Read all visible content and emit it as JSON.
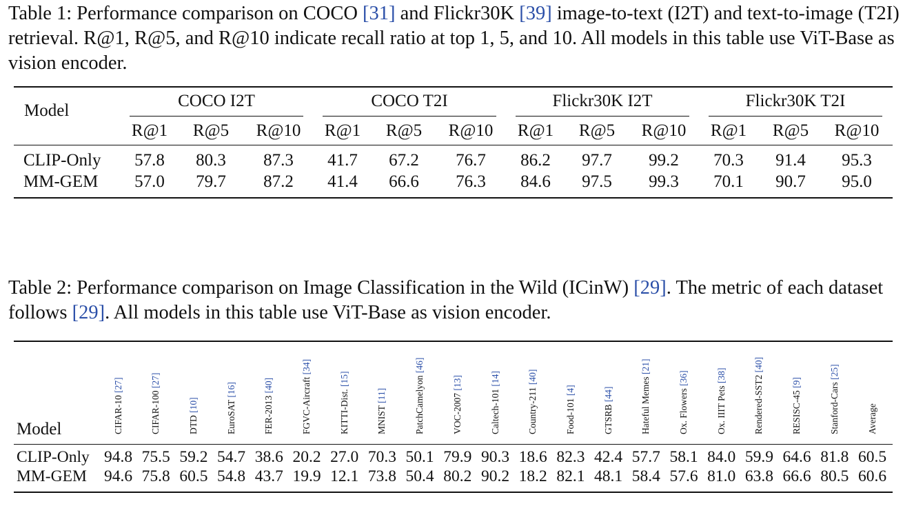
{
  "table1": {
    "caption": {
      "prefix": "Table 1: Performance comparison on COCO ",
      "ref_coco": "[31]",
      "mid1": " and Flickr30K ",
      "ref_flickr": "[39]",
      "rest": " image-to-text (I2T) and text-to-image (T2I) retrieval. R@1, R@5, and R@10 indicate recall ratio at top 1, 5, and 10. All models in this table use ViT-Base as vision encoder."
    },
    "model_header": "Model",
    "groups": [
      "COCO I2T",
      "COCO T2I",
      "Flickr30K I2T",
      "Flickr30K T2I"
    ],
    "metrics": [
      "R@1",
      "R@5",
      "R@10",
      "R@1",
      "R@5",
      "R@10",
      "R@1",
      "R@5",
      "R@10",
      "R@1",
      "R@5",
      "R@10"
    ],
    "rows": [
      {
        "model": "CLIP-Only",
        "values": [
          "57.8",
          "80.3",
          "87.3",
          "41.7",
          "67.2",
          "76.7",
          "86.2",
          "97.7",
          "99.2",
          "70.3",
          "91.4",
          "95.3"
        ]
      },
      {
        "model": "MM-GEM",
        "values": [
          "57.0",
          "79.7",
          "87.2",
          "41.4",
          "66.6",
          "76.3",
          "84.6",
          "97.5",
          "99.3",
          "70.1",
          "90.7",
          "95.0"
        ]
      }
    ]
  },
  "table2": {
    "caption": {
      "prefix": "Table 2: Performance comparison on Image Classification in the Wild (ICinW) ",
      "ref1": "[29]",
      "mid": ". The metric of each dataset follows ",
      "ref2": "[29]",
      "rest": ". All models in this table use ViT-Base as vision encoder."
    },
    "model_header": "Model",
    "columns": [
      {
        "name": "CIFAR-10",
        "ref": "[27]"
      },
      {
        "name": "CIFAR-100",
        "ref": "[27]"
      },
      {
        "name": "DTD",
        "ref": "[10]"
      },
      {
        "name": "EuroSAT",
        "ref": "[16]"
      },
      {
        "name": "FER-2013",
        "ref": "[40]"
      },
      {
        "name": "FGVC-Aircraft",
        "ref": "[34]"
      },
      {
        "name": "KITTI-Dist.",
        "ref": "[15]"
      },
      {
        "name": "MNIST",
        "ref": "[11]"
      },
      {
        "name": "PatchCamelyon",
        "ref": "[46]"
      },
      {
        "name": "VOC-2007",
        "ref": "[13]"
      },
      {
        "name": "Caltech-101",
        "ref": "[14]"
      },
      {
        "name": "Country-211",
        "ref": "[40]"
      },
      {
        "name": "Food-101",
        "ref": "[4]"
      },
      {
        "name": "GTSRB",
        "ref": "[44]"
      },
      {
        "name": "Hateful Memes",
        "ref": "[21]"
      },
      {
        "name": "Ox. Flowers",
        "ref": "[36]"
      },
      {
        "name": "Ox. IIIT Pets",
        "ref": "[38]"
      },
      {
        "name": "Rendered-SST2",
        "ref": "[40]"
      },
      {
        "name": "RESISC-45",
        "ref": "[9]"
      },
      {
        "name": "Stanford-Cars",
        "ref": "[25]"
      },
      {
        "name": "Average",
        "ref": ""
      }
    ],
    "rows": [
      {
        "model": "CLIP-Only",
        "values": [
          "94.8",
          "75.5",
          "59.2",
          "54.7",
          "38.6",
          "20.2",
          "27.0",
          "70.3",
          "50.1",
          "79.9",
          "90.3",
          "18.6",
          "82.3",
          "42.4",
          "57.7",
          "58.1",
          "84.0",
          "59.9",
          "64.6",
          "81.8",
          "60.5"
        ]
      },
      {
        "model": "MM-GEM",
        "values": [
          "94.6",
          "75.8",
          "60.5",
          "54.8",
          "43.7",
          "19.9",
          "12.1",
          "73.8",
          "50.4",
          "80.2",
          "90.2",
          "18.2",
          "82.1",
          "48.1",
          "58.4",
          "57.6",
          "81.0",
          "63.8",
          "66.6",
          "80.5",
          "60.6"
        ]
      }
    ]
  }
}
